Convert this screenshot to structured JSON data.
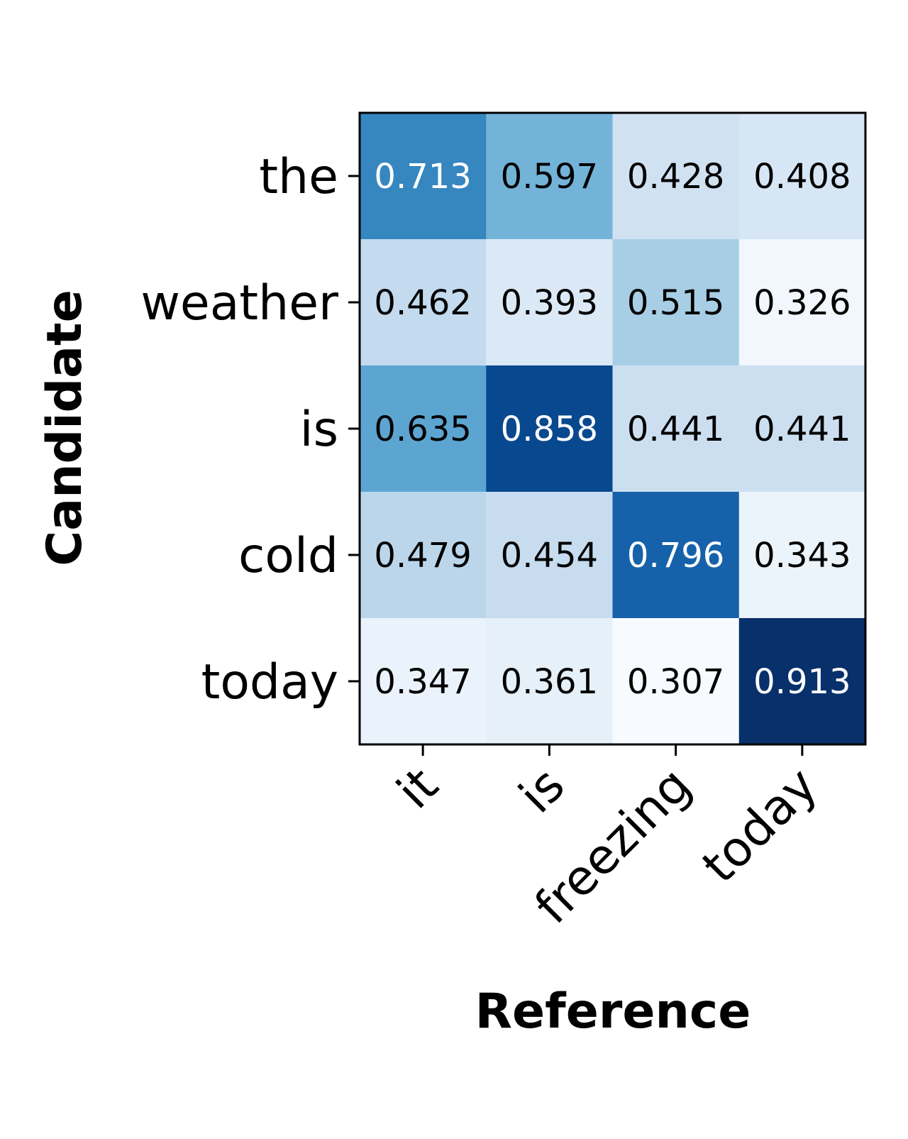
{
  "chart_data": {
    "type": "heatmap",
    "xlabel": "Reference",
    "ylabel": "Candidate",
    "x_categories": [
      "it",
      "is",
      "freezing",
      "today"
    ],
    "y_categories": [
      "the",
      "weather",
      "is",
      "cold",
      "today"
    ],
    "values": [
      [
        0.713,
        0.597,
        0.428,
        0.408
      ],
      [
        0.462,
        0.393,
        0.515,
        0.326
      ],
      [
        0.635,
        0.858,
        0.441,
        0.441
      ],
      [
        0.479,
        0.454,
        0.796,
        0.343
      ],
      [
        0.347,
        0.361,
        0.307,
        0.913
      ]
    ],
    "value_labels": [
      [
        "0.713",
        "0.597",
        "0.428",
        "0.408"
      ],
      [
        "0.462",
        "0.393",
        "0.515",
        "0.326"
      ],
      [
        "0.635",
        "0.858",
        "0.441",
        "0.441"
      ],
      [
        "0.479",
        "0.454",
        "0.796",
        "0.343"
      ],
      [
        "0.347",
        "0.361",
        "0.307",
        "0.913"
      ]
    ],
    "colormap": "Blues",
    "colormap_stops": [
      "#f7fbff",
      "#deebf7",
      "#c6dbef",
      "#9ecae1",
      "#6baed6",
      "#4292c6",
      "#2171b5",
      "#08519c",
      "#08306b"
    ],
    "value_range": [
      0.307,
      0.913
    ],
    "label_colors": {
      "dark": "#000000",
      "light": "#ffffff"
    },
    "light_label_threshold": 0.61,
    "frame_color": "#000000",
    "legend": false,
    "grid": false
  }
}
